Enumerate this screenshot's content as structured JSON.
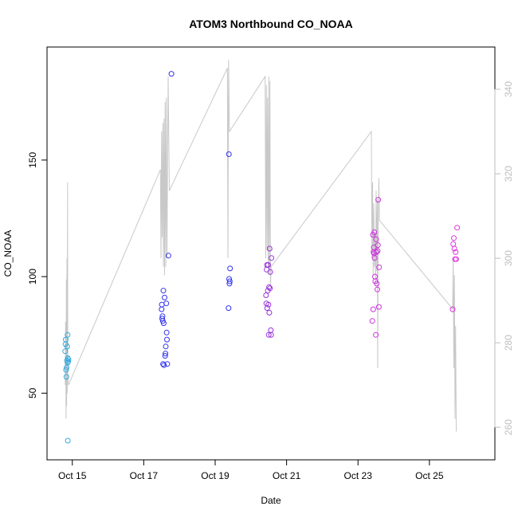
{
  "chart_data": {
    "type": "scatter",
    "title": "ATOM3 Northbound CO_NOAA",
    "xlabel": "Date",
    "ylabel": "CO_NOAA",
    "x_is_date": true,
    "x_ticks": [
      {
        "label": "Oct 15",
        "value": "2016-10-15"
      },
      {
        "label": "Oct 17",
        "value": "2016-10-17"
      },
      {
        "label": "Oct 19",
        "value": "2016-10-19"
      },
      {
        "label": "Oct 21",
        "value": "2016-10-21"
      },
      {
        "label": "Oct 23",
        "value": "2016-10-23"
      },
      {
        "label": "Oct 25",
        "value": "2016-10-25"
      }
    ],
    "xlim": [
      "2016-10-14T07:00",
      "2016-10-26T20:00"
    ],
    "ylim": [
      21.4,
      198.5
    ],
    "y_ticks": [
      50,
      100,
      150
    ],
    "right_axis": {
      "ylim": [
        252.3,
        350
      ],
      "ticks": [
        260,
        280,
        300,
        320,
        340
      ],
      "color": "#bebebe"
    },
    "grid": false,
    "legend": "none",
    "points": [
      {
        "x": "2016-10-14T19:12",
        "y": 68,
        "color": "#33aadd"
      },
      {
        "x": "2016-10-14T19:24",
        "y": 71,
        "color": "#33aadd"
      },
      {
        "x": "2016-10-14T19:36",
        "y": 73,
        "color": "#33aadd"
      },
      {
        "x": "2016-10-14T19:48",
        "y": 60,
        "color": "#33aadd"
      },
      {
        "x": "2016-10-14T20:00",
        "y": 57,
        "color": "#33aadd"
      },
      {
        "x": "2016-10-14T20:12",
        "y": 61,
        "color": "#33aadd"
      },
      {
        "x": "2016-10-14T20:24",
        "y": 64,
        "color": "#33aadd"
      },
      {
        "x": "2016-10-14T20:36",
        "y": 70,
        "color": "#33aadd"
      },
      {
        "x": "2016-10-14T20:48",
        "y": 75,
        "color": "#33aadd"
      },
      {
        "x": "2016-10-14T20:48",
        "y": 63,
        "color": "#33aadd"
      },
      {
        "x": "2016-10-14T21:00",
        "y": 65,
        "color": "#33aadd"
      },
      {
        "x": "2016-10-14T21:00",
        "y": 29.6,
        "color": "#33aadd"
      },
      {
        "x": "2016-10-14T21:12",
        "y": 63.5,
        "color": "#33aadd"
      },
      {
        "x": "2016-10-14T21:24",
        "y": 64.5,
        "color": "#33aadd"
      },
      {
        "x": "2016-10-17T12:00",
        "y": 86,
        "color": "#3333ee"
      },
      {
        "x": "2016-10-17T12:12",
        "y": 88,
        "color": "#3333ee"
      },
      {
        "x": "2016-10-17T12:24",
        "y": 82,
        "color": "#3333ee"
      },
      {
        "x": "2016-10-17T12:36",
        "y": 83,
        "color": "#3333ee"
      },
      {
        "x": "2016-10-17T12:48",
        "y": 81,
        "color": "#3333ee"
      },
      {
        "x": "2016-10-17T13:00",
        "y": 62.5,
        "color": "#3333ee"
      },
      {
        "x": "2016-10-17T13:12",
        "y": 94,
        "color": "#3333ee"
      },
      {
        "x": "2016-10-17T13:24",
        "y": 80,
        "color": "#3333ee"
      },
      {
        "x": "2016-10-17T13:36",
        "y": 62,
        "color": "#3333ee"
      },
      {
        "x": "2016-10-17T14:00",
        "y": 91,
        "color": "#3333ee"
      },
      {
        "x": "2016-10-17T14:24",
        "y": 66,
        "color": "#3333ee"
      },
      {
        "x": "2016-10-17T14:36",
        "y": 67,
        "color": "#3333ee"
      },
      {
        "x": "2016-10-17T14:48",
        "y": 70,
        "color": "#3333ee"
      },
      {
        "x": "2016-10-17T15:12",
        "y": 88.5,
        "color": "#3333ee"
      },
      {
        "x": "2016-10-17T15:24",
        "y": 76,
        "color": "#3333ee"
      },
      {
        "x": "2016-10-17T15:36",
        "y": 73,
        "color": "#3333ee"
      },
      {
        "x": "2016-10-17T15:48",
        "y": 62.5,
        "color": "#3333ee"
      },
      {
        "x": "2016-10-17T16:36",
        "y": 109,
        "color": "#3333ee"
      },
      {
        "x": "2016-10-17T18:36",
        "y": 187,
        "color": "#3333ee"
      },
      {
        "x": "2016-10-19T09:00",
        "y": 86.5,
        "color": "#3333ee"
      },
      {
        "x": "2016-10-19T09:12",
        "y": 152.5,
        "color": "#3333ee"
      },
      {
        "x": "2016-10-19T09:24",
        "y": 99,
        "color": "#3333ee"
      },
      {
        "x": "2016-10-19T09:36",
        "y": 97,
        "color": "#3333ee"
      },
      {
        "x": "2016-10-19T09:48",
        "y": 98,
        "color": "#3333ee"
      },
      {
        "x": "2016-10-19T10:00",
        "y": 103.5,
        "color": "#3333ee"
      },
      {
        "x": "2016-10-20T10:12",
        "y": 92,
        "color": "#9933dd"
      },
      {
        "x": "2016-10-20T10:24",
        "y": 88.5,
        "color": "#9933dd"
      },
      {
        "x": "2016-10-20T10:36",
        "y": 103,
        "color": "#9933dd"
      },
      {
        "x": "2016-10-20T10:48",
        "y": 105,
        "color": "#9933dd"
      },
      {
        "x": "2016-10-20T11:00",
        "y": 86.5,
        "color": "#9933dd"
      },
      {
        "x": "2016-10-20T11:24",
        "y": 94,
        "color": "#9933dd"
      },
      {
        "x": "2016-10-20T11:36",
        "y": 105,
        "color": "#9933dd"
      },
      {
        "x": "2016-10-20T11:48",
        "y": 88,
        "color": "#9933dd"
      },
      {
        "x": "2016-10-20T12:00",
        "y": 75,
        "color": "#9933dd"
      },
      {
        "x": "2016-10-20T12:12",
        "y": 95.5,
        "color": "#9933dd"
      },
      {
        "x": "2016-10-20T12:24",
        "y": 84.5,
        "color": "#9933dd"
      },
      {
        "x": "2016-10-20T12:36",
        "y": 112,
        "color": "#9933dd"
      },
      {
        "x": "2016-10-20T12:48",
        "y": 95,
        "color": "#9933dd"
      },
      {
        "x": "2016-10-20T13:00",
        "y": 102,
        "color": "#9933dd"
      },
      {
        "x": "2016-10-20T13:24",
        "y": 77,
        "color": "#9933dd"
      },
      {
        "x": "2016-10-20T13:36",
        "y": 75,
        "color": "#9933dd"
      },
      {
        "x": "2016-10-20T13:48",
        "y": 108,
        "color": "#9933dd"
      },
      {
        "x": "2016-10-23T09:36",
        "y": 81,
        "color": "#cc33dd"
      },
      {
        "x": "2016-10-23T10:00",
        "y": 118,
        "color": "#cc33dd"
      },
      {
        "x": "2016-10-23T10:12",
        "y": 86,
        "color": "#cc33dd"
      },
      {
        "x": "2016-10-23T10:24",
        "y": 110.5,
        "color": "#cc33dd"
      },
      {
        "x": "2016-10-23T10:36",
        "y": 112.5,
        "color": "#cc33dd"
      },
      {
        "x": "2016-10-23T10:48",
        "y": 110,
        "color": "#cc33dd"
      },
      {
        "x": "2016-10-23T11:00",
        "y": 119,
        "color": "#cc33dd"
      },
      {
        "x": "2016-10-23T11:12",
        "y": 108,
        "color": "#cc33dd"
      },
      {
        "x": "2016-10-23T11:24",
        "y": 100,
        "color": "#cc33dd"
      },
      {
        "x": "2016-10-23T11:36",
        "y": 98,
        "color": "#cc33dd"
      },
      {
        "x": "2016-10-23T12:00",
        "y": 75,
        "color": "#cc33dd"
      },
      {
        "x": "2016-10-23T12:12",
        "y": 116,
        "color": "#cc33dd"
      },
      {
        "x": "2016-10-23T12:24",
        "y": 110.5,
        "color": "#cc33dd"
      },
      {
        "x": "2016-10-23T12:36",
        "y": 97,
        "color": "#cc33dd"
      },
      {
        "x": "2016-10-23T13:00",
        "y": 94.5,
        "color": "#cc33dd"
      },
      {
        "x": "2016-10-23T13:12",
        "y": 111,
        "color": "#cc33dd"
      },
      {
        "x": "2016-10-23T13:24",
        "y": 113.5,
        "color": "#cc33dd"
      },
      {
        "x": "2016-10-23T13:36",
        "y": 133,
        "color": "#cc33dd"
      },
      {
        "x": "2016-10-23T14:00",
        "y": 87,
        "color": "#cc33dd"
      },
      {
        "x": "2016-10-23T14:12",
        "y": 104,
        "color": "#cc33dd"
      },
      {
        "x": "2016-10-25T15:36",
        "y": 86,
        "color": "#dd33dd"
      },
      {
        "x": "2016-10-25T16:00",
        "y": 114,
        "color": "#dd33dd"
      },
      {
        "x": "2016-10-25T16:24",
        "y": 116.5,
        "color": "#dd33dd"
      },
      {
        "x": "2016-10-25T16:48",
        "y": 112,
        "color": "#dd33dd"
      },
      {
        "x": "2016-10-25T17:12",
        "y": 107.5,
        "color": "#dd33dd"
      },
      {
        "x": "2016-10-25T17:36",
        "y": 110.5,
        "color": "#dd33dd"
      },
      {
        "x": "2016-10-25T18:00",
        "y": 107.5,
        "color": "#dd33dd"
      },
      {
        "x": "2016-10-25T18:36",
        "y": 121,
        "color": "#dd33dd"
      }
    ],
    "line_series": {
      "axis": "right",
      "color": "#c8c8c8",
      "points": [
        {
          "x": "2016-10-14T19:12",
          "y": 270
        },
        {
          "x": "2016-10-14T19:30",
          "y": 285
        },
        {
          "x": "2016-10-14T19:48",
          "y": 262
        },
        {
          "x": "2016-10-14T20:00",
          "y": 295
        },
        {
          "x": "2016-10-14T20:12",
          "y": 265
        },
        {
          "x": "2016-10-14T20:24",
          "y": 300
        },
        {
          "x": "2016-10-14T20:36",
          "y": 268
        },
        {
          "x": "2016-10-14T20:48",
          "y": 318
        },
        {
          "x": "2016-10-14T21:00",
          "y": 272
        },
        {
          "x": "2016-10-14T21:24",
          "y": 270
        },
        {
          "x": "2016-10-17T11:12",
          "y": 321
        },
        {
          "x": "2016-10-17T11:36",
          "y": 300
        },
        {
          "x": "2016-10-17T12:00",
          "y": 330
        },
        {
          "x": "2016-10-17T12:24",
          "y": 305
        },
        {
          "x": "2016-10-17T12:48",
          "y": 332
        },
        {
          "x": "2016-10-17T13:12",
          "y": 298
        },
        {
          "x": "2016-10-17T13:36",
          "y": 333
        },
        {
          "x": "2016-10-17T14:00",
          "y": 296
        },
        {
          "x": "2016-10-17T14:24",
          "y": 337
        },
        {
          "x": "2016-10-17T14:48",
          "y": 298
        },
        {
          "x": "2016-10-17T15:12",
          "y": 338
        },
        {
          "x": "2016-10-17T15:36",
          "y": 300
        },
        {
          "x": "2016-10-17T16:24",
          "y": 343
        },
        {
          "x": "2016-10-17T17:12",
          "y": 316
        },
        {
          "x": "2016-10-19T08:12",
          "y": 345
        },
        {
          "x": "2016-10-19T08:36",
          "y": 300
        },
        {
          "x": "2016-10-19T09:00",
          "y": 347
        },
        {
          "x": "2016-10-19T09:36",
          "y": 330
        },
        {
          "x": "2016-10-20T09:36",
          "y": 343
        },
        {
          "x": "2016-10-20T10:00",
          "y": 300
        },
        {
          "x": "2016-10-20T10:24",
          "y": 341
        },
        {
          "x": "2016-10-20T10:48",
          "y": 302
        },
        {
          "x": "2016-10-20T11:12",
          "y": 338
        },
        {
          "x": "2016-10-20T11:36",
          "y": 298
        },
        {
          "x": "2016-10-20T12:00",
          "y": 343
        },
        {
          "x": "2016-10-20T12:24",
          "y": 296
        },
        {
          "x": "2016-10-20T12:48",
          "y": 342
        },
        {
          "x": "2016-10-20T13:12",
          "y": 293
        },
        {
          "x": "2016-10-20T13:36",
          "y": 298
        },
        {
          "x": "2016-10-23T09:00",
          "y": 330
        },
        {
          "x": "2016-10-23T09:24",
          "y": 300
        },
        {
          "x": "2016-10-23T09:48",
          "y": 318
        },
        {
          "x": "2016-10-23T10:12",
          "y": 296
        },
        {
          "x": "2016-10-23T10:36",
          "y": 313
        },
        {
          "x": "2016-10-23T11:00",
          "y": 298
        },
        {
          "x": "2016-10-23T11:24",
          "y": 306
        },
        {
          "x": "2016-10-23T11:48",
          "y": 294
        },
        {
          "x": "2016-10-23T12:12",
          "y": 316
        },
        {
          "x": "2016-10-23T12:36",
          "y": 297
        },
        {
          "x": "2016-10-23T13:00",
          "y": 314
        },
        {
          "x": "2016-10-23T13:12",
          "y": 274
        },
        {
          "x": "2016-10-23T13:36",
          "y": 308
        },
        {
          "x": "2016-10-23T14:00",
          "y": 319
        },
        {
          "x": "2016-10-23T14:24",
          "y": 309
        },
        {
          "x": "2016-10-25T15:36",
          "y": 288
        },
        {
          "x": "2016-10-25T16:00",
          "y": 300
        },
        {
          "x": "2016-10-25T16:24",
          "y": 274
        },
        {
          "x": "2016-10-25T16:48",
          "y": 296
        },
        {
          "x": "2016-10-25T17:12",
          "y": 262
        },
        {
          "x": "2016-10-25T17:36",
          "y": 284
        },
        {
          "x": "2016-10-25T18:00",
          "y": 259
        }
      ]
    }
  }
}
